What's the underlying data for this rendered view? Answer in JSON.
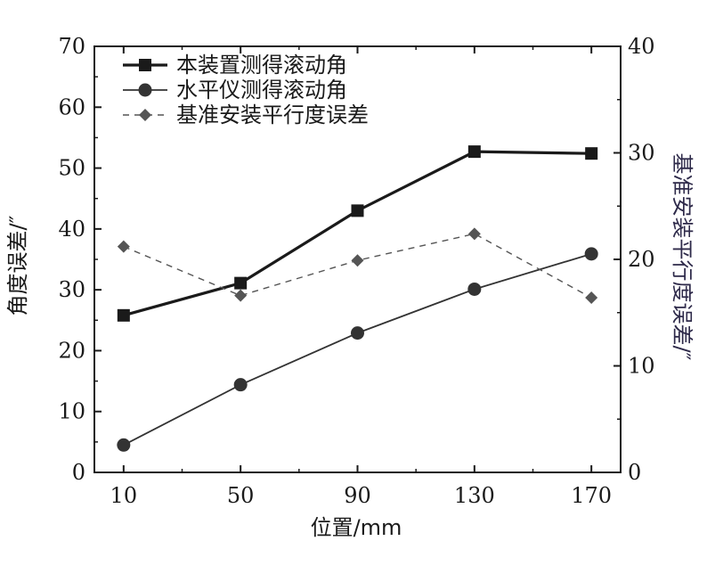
{
  "chart_data": {
    "type": "line",
    "x": [
      10,
      50,
      90,
      130,
      170
    ],
    "xlabel": "位置/mm",
    "ylabel": "角度误差/″",
    "y2label": "基准安装平行度误差/″",
    "xlim": [
      0,
      180
    ],
    "ylim": [
      0,
      70
    ],
    "y2lim": [
      0,
      40
    ],
    "xticks": [
      "10",
      "50",
      "90",
      "130",
      "170"
    ],
    "yticks": [
      "0",
      "10",
      "20",
      "30",
      "40",
      "50",
      "60",
      "70"
    ],
    "y2ticks": [
      "0",
      "10",
      "20",
      "30",
      "40"
    ],
    "grid": false,
    "legend_position": "top-left",
    "series": [
      {
        "name": "本装置测得滚动角",
        "axis": "left",
        "marker": "square",
        "line_style": "solid-thick",
        "color": "#1a1a1a",
        "values": [
          25.8,
          31.1,
          43.0,
          52.7,
          52.4
        ]
      },
      {
        "name": "水平仪测得滚动角",
        "axis": "left",
        "marker": "circle",
        "line_style": "solid",
        "color": "#333333",
        "values": [
          4.5,
          14.4,
          22.9,
          30.1,
          35.9
        ]
      },
      {
        "name": "基准安装平行度误差",
        "axis": "right",
        "marker": "diamond",
        "line_style": "dashed",
        "color": "#555555",
        "values": [
          21.2,
          16.6,
          19.9,
          22.4,
          16.4
        ]
      }
    ]
  }
}
